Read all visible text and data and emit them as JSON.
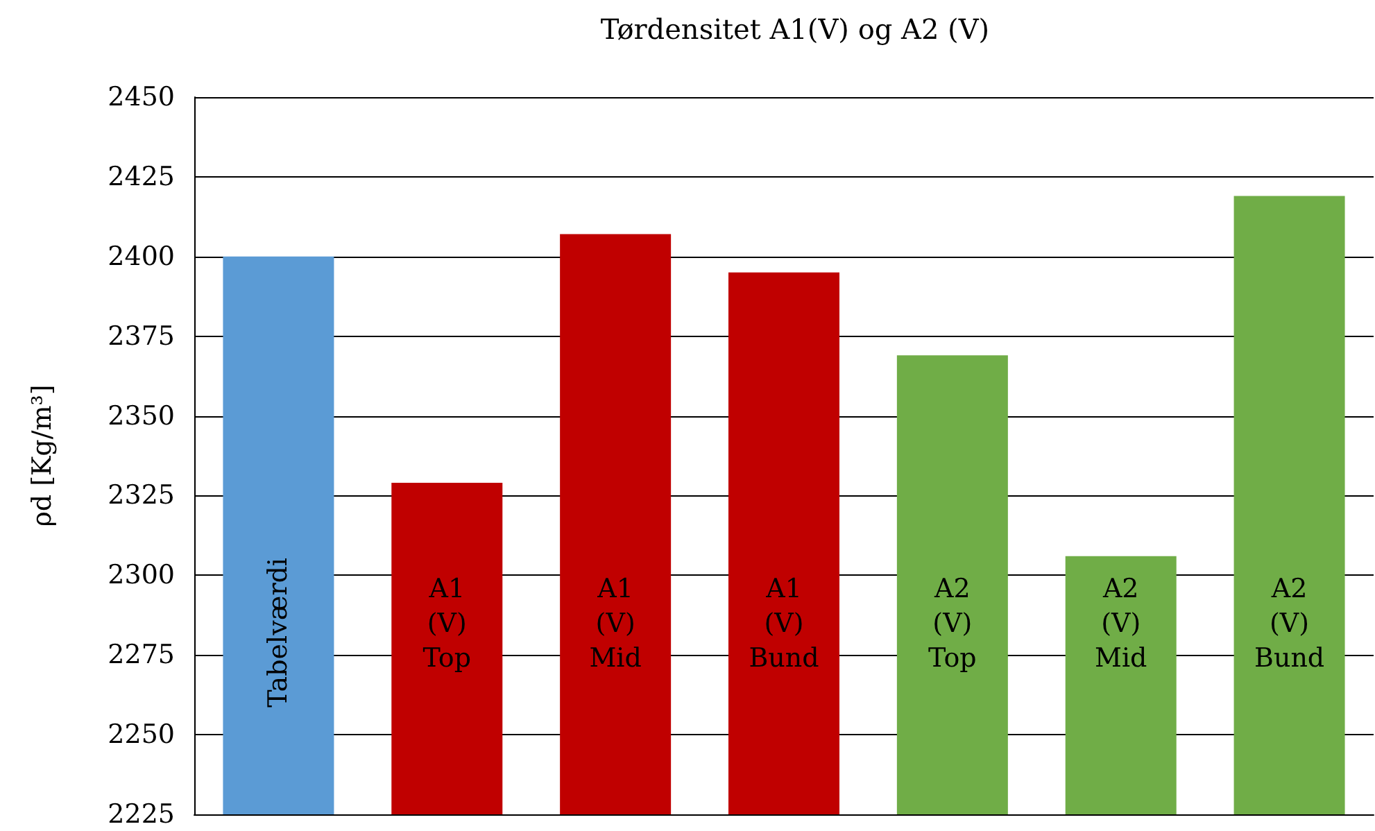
{
  "chart_data": {
    "type": "bar",
    "title": "Tørdensitet A1(V) og A2 (V)",
    "ylabel": "ρd [Kg/m³]",
    "categories": [
      "Tabelværdi",
      "A1 (V) Top",
      "A1 (V) Mid",
      "A1 (V) Bund",
      "A2 (V) Top",
      "A2 (V) Mid",
      "A2 (V) Bund"
    ],
    "values": [
      2400,
      2329,
      2407,
      2395,
      2369,
      2306,
      2419
    ],
    "colors": [
      "#5b9bd5",
      "#c00000",
      "#c00000",
      "#c00000",
      "#70ad47",
      "#70ad47",
      "#70ad47"
    ],
    "ylim": [
      2225,
      2450
    ],
    "yticks": [
      2225,
      2250,
      2275,
      2300,
      2325,
      2350,
      2375,
      2400,
      2425,
      2450
    ],
    "grid": "y"
  }
}
